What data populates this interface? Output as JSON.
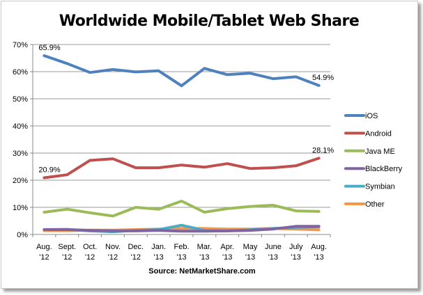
{
  "chart_data": {
    "type": "line",
    "title": "Worldwide Mobile/Tablet Web Share",
    "source": "Source: NetMarketShare.com",
    "categories": [
      [
        "Aug.",
        "'12"
      ],
      [
        "Sept.",
        "'12"
      ],
      [
        "Oct.",
        "'12"
      ],
      [
        "Nov.",
        "'12"
      ],
      [
        "Dec.",
        "'12"
      ],
      [
        "Jan.",
        "'13"
      ],
      [
        "Feb.",
        "'13"
      ],
      [
        "Mar.",
        "'13"
      ],
      [
        "Apr.",
        "'13"
      ],
      [
        "May",
        "'13"
      ],
      [
        "June",
        "'13"
      ],
      [
        "July",
        "'13"
      ],
      [
        "Aug.",
        "'13"
      ]
    ],
    "ylim": [
      0,
      70
    ],
    "yticks": [
      "0%",
      "10%",
      "20%",
      "30%",
      "40%",
      "50%",
      "60%",
      "70%"
    ],
    "grid": true,
    "legend": "right",
    "series": [
      {
        "name": "iOS",
        "color": "#4f81bd",
        "values": [
          65.9,
          63.0,
          59.7,
          60.8,
          59.9,
          60.3,
          54.8,
          61.2,
          58.9,
          59.4,
          57.4,
          58.1,
          54.9
        ]
      },
      {
        "name": "Android",
        "color": "#c0504d",
        "values": [
          20.9,
          22.0,
          27.3,
          27.9,
          24.6,
          24.6,
          25.6,
          24.8,
          26.1,
          24.3,
          24.6,
          25.3,
          28.1
        ]
      },
      {
        "name": "Java ME",
        "color": "#9bbb59",
        "values": [
          8.2,
          9.3,
          8.0,
          6.8,
          10.0,
          9.3,
          12.3,
          8.2,
          9.5,
          10.3,
          10.8,
          8.7,
          8.5
        ]
      },
      {
        "name": "BlackBerry",
        "color": "#8064a2",
        "values": [
          1.8,
          1.8,
          1.5,
          1.3,
          1.3,
          1.5,
          1.2,
          1.2,
          1.3,
          1.5,
          2.0,
          3.0,
          3.0
        ]
      },
      {
        "name": "Symbian",
        "color": "#4bacc6",
        "values": [
          1.8,
          1.9,
          1.3,
          1.0,
          1.5,
          1.8,
          3.4,
          1.5,
          1.3,
          1.7,
          2.2,
          2.6,
          2.8
        ]
      },
      {
        "name": "Other",
        "color": "#f79646",
        "values": [
          1.4,
          1.4,
          1.6,
          1.6,
          1.8,
          2.0,
          2.2,
          2.2,
          2.0,
          2.0,
          2.2,
          2.0,
          1.7
        ]
      }
    ],
    "annotations": [
      {
        "series": "iOS",
        "index": 0,
        "text": "65.9%"
      },
      {
        "series": "iOS",
        "index": 12,
        "text": "54.9%"
      },
      {
        "series": "Android",
        "index": 0,
        "text": "20.9%"
      },
      {
        "series": "Android",
        "index": 12,
        "text": "28.1%"
      }
    ]
  }
}
